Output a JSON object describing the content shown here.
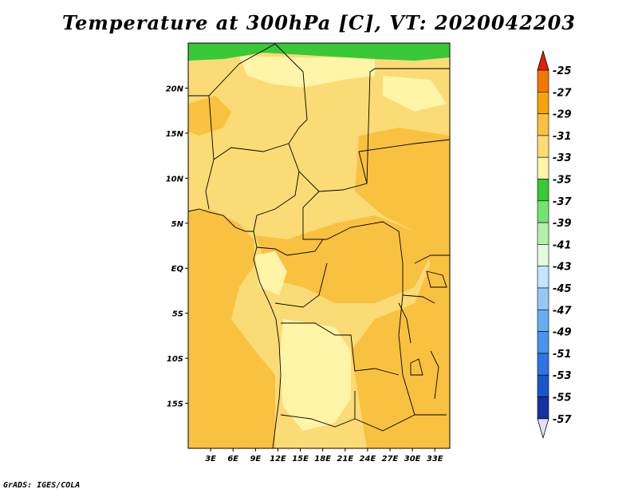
{
  "title": "Temperature at 300hPa [C], VT: 2020042203",
  "credit": "GrADS: IGES/COLA",
  "map": {
    "lon_range": [
      0,
      35
    ],
    "lat_range": [
      -20,
      25
    ],
    "x_ticks": [
      "3E",
      "6E",
      "9E",
      "12E",
      "15E",
      "18E",
      "21E",
      "24E",
      "27E",
      "30E",
      "33E"
    ],
    "y_ticks": [
      "20N",
      "15N",
      "10N",
      "5N",
      "EQ",
      "5S",
      "10S",
      "15S"
    ]
  },
  "colorbar": {
    "labels": [
      "-25",
      "-27",
      "-29",
      "-31",
      "-33",
      "-35",
      "-37",
      "-39",
      "-41",
      "-43",
      "-45",
      "-47",
      "-49",
      "-51",
      "-53",
      "-55",
      "-57"
    ],
    "colors": [
      "#f04000",
      "#f07800",
      "#f5a30a",
      "#f9c140",
      "#fbdb75",
      "#fff4a8",
      "#38c838",
      "#76e272",
      "#b4f0aa",
      "#e2fbe0",
      "#c4e4ff",
      "#96c8f7",
      "#6aacf0",
      "#4b92ec",
      "#2f74e0",
      "#1a56c8",
      "#1432a0",
      "#101070"
    ],
    "top_color": "#e62000",
    "bottom_color": "#e4e0ff"
  },
  "field_colors": {
    "c31_29": "#f9c140",
    "c33_31": "#fbdb75",
    "c35_33": "#fff4a8",
    "c37_35": "#38c838"
  }
}
